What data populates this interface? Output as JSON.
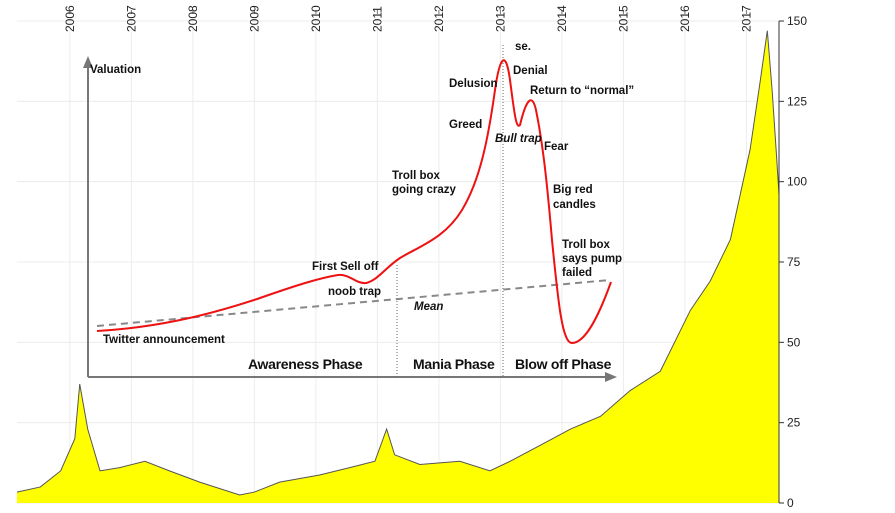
{
  "chart_data": {
    "type": "area",
    "color": "#ffff00",
    "x": [
      2005.14,
      2005.52,
      2005.85,
      2006.08,
      2006.16,
      2006.29,
      2006.49,
      2006.81,
      2007.22,
      2007.62,
      2008.11,
      2008.76,
      2009.0,
      2009.41,
      2010.06,
      2010.55,
      2010.96,
      2011.15,
      2011.28,
      2011.69,
      2012.34,
      2012.83,
      2013.16,
      2013.65,
      2014.14,
      2014.63,
      2015.11,
      2015.6,
      2016.09,
      2016.41,
      2016.74,
      2017.06,
      2017.23,
      2017.34,
      2017.42,
      2017.49,
      2017.53
    ],
    "values": [
      3.4,
      5,
      10,
      20,
      37,
      23,
      10,
      11,
      13,
      10,
      6.5,
      2.5,
      3.4,
      6.5,
      8.7,
      11,
      13,
      23,
      15,
      12,
      13,
      10,
      13,
      18,
      23,
      27,
      35,
      41,
      60,
      69,
      82,
      110,
      132,
      147,
      128,
      108,
      96
    ],
    "xlim": [
      2005.14,
      2017.53
    ],
    "xticks": [
      2006,
      2007,
      2008,
      2009,
      2010,
      2011,
      2012,
      2013,
      2014,
      2015,
      2016,
      2017
    ],
    "ylim": [
      0,
      150
    ],
    "yticks": [
      0,
      25,
      50,
      75,
      100,
      125,
      150
    ],
    "grid": true,
    "annotations": [
      "Valuation",
      "Twitter announcement",
      "First Sell off",
      "noob trap",
      "Troll box",
      "going crazy",
      "Mean",
      "Greed",
      "Delusion",
      "se.",
      "Denial",
      "Return to “normal”",
      "Bull trap",
      "Fear",
      "Big red",
      "candles",
      "Troll box",
      "says pump",
      "failed",
      "Awareness Phase",
      "Mania Phase",
      "Blow off Phase"
    ]
  }
}
